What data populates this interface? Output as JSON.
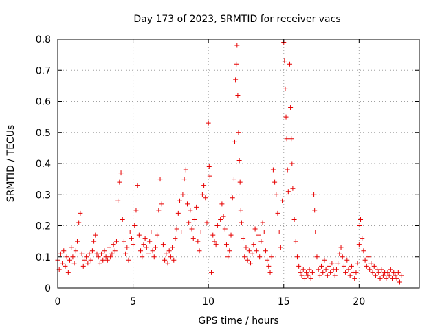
{
  "chart_data": {
    "type": "scatter",
    "title": "Day 173 of 2023, SRMTID for receiver vacs",
    "xlabel": "GPS time / hours",
    "ylabel": "SRMTID / TECUs",
    "xlim": [
      0,
      24
    ],
    "ylim": [
      0,
      0.8
    ],
    "xticks": [
      0,
      5,
      10,
      15,
      20
    ],
    "xtick_labels": [
      "0",
      "5",
      "10",
      "15",
      "20"
    ],
    "yticks": [
      0,
      0.1,
      0.2,
      0.3,
      0.4,
      0.5,
      0.6,
      0.7,
      0.8
    ],
    "ytick_labels": [
      "0",
      "0.1",
      "0.2",
      "0.3",
      "0.4",
      "0.5",
      "0.6",
      "0.7",
      "0.8"
    ],
    "grid": true,
    "marker": "plus",
    "color": "#e60000",
    "series": [
      {
        "name": "SRMTID",
        "points": [
          [
            0.0,
            0.09
          ],
          [
            0.1,
            0.06
          ],
          [
            0.2,
            0.11
          ],
          [
            0.3,
            0.08
          ],
          [
            0.4,
            0.12
          ],
          [
            0.5,
            0.07
          ],
          [
            0.6,
            0.1
          ],
          [
            0.7,
            0.05
          ],
          [
            0.8,
            0.09
          ],
          [
            0.9,
            0.13
          ],
          [
            1.0,
            0.1
          ],
          [
            1.1,
            0.08
          ],
          [
            1.2,
            0.12
          ],
          [
            1.3,
            0.15
          ],
          [
            1.4,
            0.21
          ],
          [
            1.5,
            0.24
          ],
          [
            1.6,
            0.11
          ],
          [
            1.7,
            0.07
          ],
          [
            1.8,
            0.09
          ],
          [
            1.9,
            0.1
          ],
          [
            2.0,
            0.08
          ],
          [
            2.1,
            0.11
          ],
          [
            2.2,
            0.09
          ],
          [
            2.3,
            0.12
          ],
          [
            2.4,
            0.15
          ],
          [
            2.5,
            0.17
          ],
          [
            2.6,
            0.11
          ],
          [
            2.7,
            0.1
          ],
          [
            2.8,
            0.08
          ],
          [
            2.9,
            0.11
          ],
          [
            3.0,
            0.09
          ],
          [
            3.1,
            0.12
          ],
          [
            3.2,
            0.1
          ],
          [
            3.3,
            0.09
          ],
          [
            3.4,
            0.13
          ],
          [
            3.5,
            0.1
          ],
          [
            3.6,
            0.11
          ],
          [
            3.7,
            0.14
          ],
          [
            3.8,
            0.12
          ],
          [
            3.9,
            0.15
          ],
          [
            4.0,
            0.28
          ],
          [
            4.1,
            0.34
          ],
          [
            4.2,
            0.37
          ],
          [
            4.3,
            0.22
          ],
          [
            4.4,
            0.15
          ],
          [
            4.5,
            0.11
          ],
          [
            4.6,
            0.13
          ],
          [
            4.7,
            0.09
          ],
          [
            4.8,
            0.18
          ],
          [
            4.9,
            0.16
          ],
          [
            5.0,
            0.14
          ],
          [
            5.1,
            0.2
          ],
          [
            5.2,
            0.25
          ],
          [
            5.3,
            0.33
          ],
          [
            5.4,
            0.17
          ],
          [
            5.5,
            0.12
          ],
          [
            5.6,
            0.1
          ],
          [
            5.7,
            0.14
          ],
          [
            5.8,
            0.16
          ],
          [
            5.9,
            0.13
          ],
          [
            6.0,
            0.11
          ],
          [
            6.1,
            0.15
          ],
          [
            6.2,
            0.18
          ],
          [
            6.3,
            0.12
          ],
          [
            6.4,
            0.1
          ],
          [
            6.5,
            0.13
          ],
          [
            6.6,
            0.17
          ],
          [
            6.7,
            0.25
          ],
          [
            6.8,
            0.35
          ],
          [
            6.9,
            0.27
          ],
          [
            7.0,
            0.14
          ],
          [
            7.1,
            0.09
          ],
          [
            7.2,
            0.11
          ],
          [
            7.3,
            0.08
          ],
          [
            7.4,
            0.12
          ],
          [
            7.5,
            0.1
          ],
          [
            7.6,
            0.13
          ],
          [
            7.7,
            0.09
          ],
          [
            7.8,
            0.16
          ],
          [
            7.9,
            0.19
          ],
          [
            8.0,
            0.24
          ],
          [
            8.1,
            0.28
          ],
          [
            8.2,
            0.18
          ],
          [
            8.3,
            0.3
          ],
          [
            8.4,
            0.35
          ],
          [
            8.5,
            0.38
          ],
          [
            8.6,
            0.27
          ],
          [
            8.7,
            0.21
          ],
          [
            8.8,
            0.25
          ],
          [
            8.9,
            0.19
          ],
          [
            9.0,
            0.16
          ],
          [
            9.1,
            0.22
          ],
          [
            9.2,
            0.26
          ],
          [
            9.3,
            0.15
          ],
          [
            9.4,
            0.12
          ],
          [
            9.5,
            0.18
          ],
          [
            9.6,
            0.3
          ],
          [
            9.7,
            0.33
          ],
          [
            9.8,
            0.29
          ],
          [
            9.9,
            0.21
          ],
          [
            10.0,
            0.53
          ],
          [
            10.05,
            0.39
          ],
          [
            10.1,
            0.36
          ],
          [
            10.2,
            0.05
          ],
          [
            10.3,
            0.17
          ],
          [
            10.4,
            0.15
          ],
          [
            10.5,
            0.14
          ],
          [
            10.6,
            0.2
          ],
          [
            10.7,
            0.18
          ],
          [
            10.8,
            0.22
          ],
          [
            10.9,
            0.27
          ],
          [
            11.0,
            0.23
          ],
          [
            11.1,
            0.19
          ],
          [
            11.2,
            0.14
          ],
          [
            11.3,
            0.1
          ],
          [
            11.4,
            0.12
          ],
          [
            11.5,
            0.17
          ],
          [
            11.6,
            0.29
          ],
          [
            11.7,
            0.35
          ],
          [
            11.75,
            0.47
          ],
          [
            11.8,
            0.67
          ],
          [
            11.85,
            0.72
          ],
          [
            11.9,
            0.78
          ],
          [
            11.95,
            0.62
          ],
          [
            12.0,
            0.5
          ],
          [
            12.05,
            0.41
          ],
          [
            12.1,
            0.34
          ],
          [
            12.15,
            0.25
          ],
          [
            12.2,
            0.21
          ],
          [
            12.3,
            0.16
          ],
          [
            12.4,
            0.1
          ],
          [
            12.5,
            0.13
          ],
          [
            12.6,
            0.09
          ],
          [
            12.7,
            0.12
          ],
          [
            12.8,
            0.08
          ],
          [
            12.9,
            0.11
          ],
          [
            13.0,
            0.14
          ],
          [
            13.1,
            0.19
          ],
          [
            13.2,
            0.12
          ],
          [
            13.3,
            0.17
          ],
          [
            13.4,
            0.1
          ],
          [
            13.5,
            0.15
          ],
          [
            13.6,
            0.21
          ],
          [
            13.7,
            0.18
          ],
          [
            13.8,
            0.12
          ],
          [
            13.9,
            0.09
          ],
          [
            14.0,
            0.07
          ],
          [
            14.1,
            0.05
          ],
          [
            14.2,
            0.1
          ],
          [
            14.3,
            0.38
          ],
          [
            14.4,
            0.34
          ],
          [
            14.5,
            0.3
          ],
          [
            14.6,
            0.24
          ],
          [
            14.7,
            0.18
          ],
          [
            14.8,
            0.13
          ],
          [
            14.9,
            0.28
          ],
          [
            15.0,
            0.79
          ],
          [
            15.05,
            0.73
          ],
          [
            15.1,
            0.64
          ],
          [
            15.15,
            0.55
          ],
          [
            15.2,
            0.48
          ],
          [
            15.25,
            0.38
          ],
          [
            15.3,
            0.31
          ],
          [
            15.4,
            0.72
          ],
          [
            15.45,
            0.58
          ],
          [
            15.5,
            0.48
          ],
          [
            15.55,
            0.4
          ],
          [
            15.6,
            0.32
          ],
          [
            15.7,
            0.22
          ],
          [
            15.8,
            0.15
          ],
          [
            15.9,
            0.1
          ],
          [
            16.0,
            0.07
          ],
          [
            16.1,
            0.05
          ],
          [
            16.2,
            0.04
          ],
          [
            16.3,
            0.06
          ],
          [
            16.4,
            0.03
          ],
          [
            16.5,
            0.05
          ],
          [
            16.6,
            0.04
          ],
          [
            16.7,
            0.06
          ],
          [
            16.8,
            0.03
          ],
          [
            16.9,
            0.05
          ],
          [
            17.0,
            0.3
          ],
          [
            17.05,
            0.25
          ],
          [
            17.1,
            0.18
          ],
          [
            17.2,
            0.1
          ],
          [
            17.3,
            0.06
          ],
          [
            17.4,
            0.04
          ],
          [
            17.5,
            0.07
          ],
          [
            17.6,
            0.05
          ],
          [
            17.7,
            0.09
          ],
          [
            17.8,
            0.06
          ],
          [
            17.9,
            0.04
          ],
          [
            18.0,
            0.07
          ],
          [
            18.1,
            0.05
          ],
          [
            18.2,
            0.08
          ],
          [
            18.3,
            0.06
          ],
          [
            18.4,
            0.04
          ],
          [
            18.5,
            0.06
          ],
          [
            18.6,
            0.08
          ],
          [
            18.7,
            0.11
          ],
          [
            18.8,
            0.13
          ],
          [
            18.9,
            0.1
          ],
          [
            19.0,
            0.07
          ],
          [
            19.1,
            0.05
          ],
          [
            19.2,
            0.09
          ],
          [
            19.3,
            0.06
          ],
          [
            19.4,
            0.04
          ],
          [
            19.5,
            0.07
          ],
          [
            19.6,
            0.05
          ],
          [
            19.7,
            0.03
          ],
          [
            19.8,
            0.05
          ],
          [
            19.9,
            0.08
          ],
          [
            20.0,
            0.14
          ],
          [
            20.05,
            0.2
          ],
          [
            20.1,
            0.22
          ],
          [
            20.2,
            0.16
          ],
          [
            20.3,
            0.12
          ],
          [
            20.4,
            0.09
          ],
          [
            20.5,
            0.07
          ],
          [
            20.6,
            0.1
          ],
          [
            20.7,
            0.06
          ],
          [
            20.8,
            0.08
          ],
          [
            20.9,
            0.05
          ],
          [
            21.0,
            0.07
          ],
          [
            21.1,
            0.04
          ],
          [
            21.2,
            0.06
          ],
          [
            21.3,
            0.05
          ],
          [
            21.4,
            0.03
          ],
          [
            21.5,
            0.06
          ],
          [
            21.6,
            0.04
          ],
          [
            21.7,
            0.05
          ],
          [
            21.8,
            0.03
          ],
          [
            21.9,
            0.05
          ],
          [
            22.0,
            0.04
          ],
          [
            22.1,
            0.06
          ],
          [
            22.2,
            0.03
          ],
          [
            22.3,
            0.05
          ],
          [
            22.4,
            0.04
          ],
          [
            22.5,
            0.03
          ],
          [
            22.6,
            0.05
          ],
          [
            22.7,
            0.02
          ],
          [
            22.8,
            0.04
          ]
        ]
      }
    ]
  }
}
